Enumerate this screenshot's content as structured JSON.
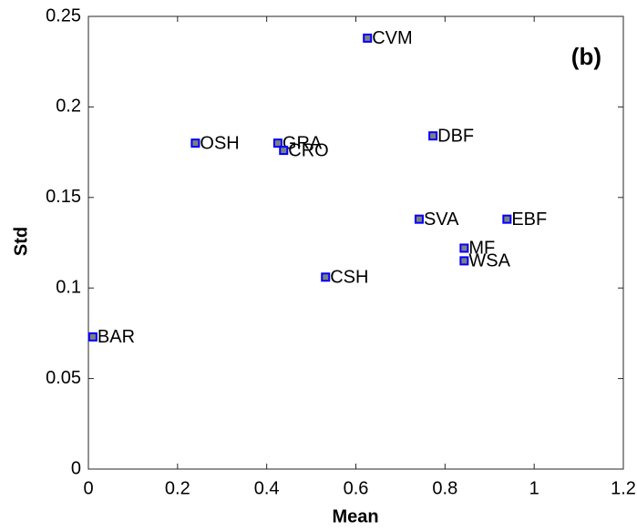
{
  "chart_data": {
    "type": "scatter",
    "xlabel": "Mean",
    "ylabel": "Std",
    "annotation": "(b)",
    "labels": [
      "BAR",
      "OSH",
      "GRA",
      "CRO",
      "CVM",
      "DBF",
      "CSH",
      "SVA",
      "EBF",
      "MF",
      "WSA"
    ],
    "x": [
      0.01,
      0.24,
      0.425,
      0.438,
      0.626,
      0.773,
      0.532,
      0.742,
      0.939,
      0.843,
      0.843
    ],
    "values": [
      0.073,
      0.18,
      0.18,
      0.176,
      0.238,
      0.184,
      0.106,
      0.138,
      0.138,
      0.122,
      0.115
    ],
    "color": "#0000ff",
    "marker_fill": "#808080",
    "xlim": [
      0,
      1.2
    ],
    "xticks": [
      0,
      0.2,
      0.4,
      0.6,
      0.8,
      1,
      1.2
    ],
    "ylim": [
      0,
      0.25
    ],
    "yticks": [
      0,
      0.05,
      0.1,
      0.15,
      0.2,
      0.25
    ]
  }
}
